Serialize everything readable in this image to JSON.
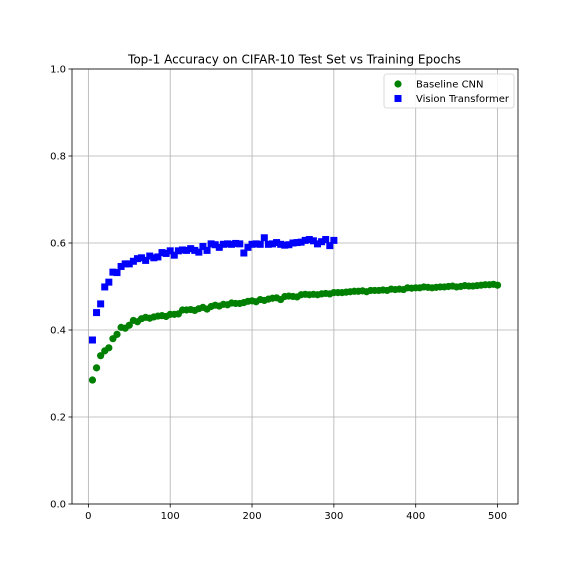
{
  "chart_data": {
    "type": "scatter",
    "title": "Top-1 Accuracy on CIFAR-10 Test Set vs Training Epochs",
    "xlabel": "",
    "ylabel": "",
    "xlim": [
      -20,
      525
    ],
    "ylim": [
      0.0,
      1.0
    ],
    "xticks": [
      0,
      100,
      200,
      300,
      400,
      500
    ],
    "xtick_labels": [
      "0",
      "100",
      "200",
      "300",
      "400",
      "500"
    ],
    "yticks": [
      0.0,
      0.2,
      0.4,
      0.6,
      0.8,
      1.0
    ],
    "ytick_labels": [
      "0.0",
      "0.2",
      "0.4",
      "0.6",
      "0.8",
      "1.0"
    ],
    "grid": true,
    "legend_position": "top-right",
    "series": [
      {
        "name": "Baseline CNN",
        "marker": "circle",
        "color": "#008000",
        "points": [
          [
            5,
            0.285
          ],
          [
            10,
            0.313
          ],
          [
            15,
            0.341
          ],
          [
            20,
            0.352
          ],
          [
            25,
            0.359
          ],
          [
            30,
            0.38
          ],
          [
            35,
            0.39
          ],
          [
            40,
            0.406
          ],
          [
            45,
            0.404
          ],
          [
            50,
            0.411
          ],
          [
            55,
            0.422
          ],
          [
            60,
            0.419
          ],
          [
            65,
            0.426
          ],
          [
            70,
            0.429
          ],
          [
            75,
            0.427
          ],
          [
            80,
            0.43
          ],
          [
            85,
            0.432
          ],
          [
            90,
            0.433
          ],
          [
            95,
            0.431
          ],
          [
            100,
            0.436
          ],
          [
            105,
            0.436
          ],
          [
            110,
            0.437
          ],
          [
            115,
            0.446
          ],
          [
            120,
            0.446
          ],
          [
            125,
            0.447
          ],
          [
            130,
            0.445
          ],
          [
            135,
            0.449
          ],
          [
            140,
            0.452
          ],
          [
            145,
            0.448
          ],
          [
            150,
            0.454
          ],
          [
            155,
            0.457
          ],
          [
            160,
            0.455
          ],
          [
            165,
            0.459
          ],
          [
            170,
            0.458
          ],
          [
            175,
            0.462
          ],
          [
            180,
            0.461
          ],
          [
            185,
            0.461
          ],
          [
            190,
            0.463
          ],
          [
            195,
            0.466
          ],
          [
            200,
            0.467
          ],
          [
            205,
            0.465
          ],
          [
            210,
            0.47
          ],
          [
            215,
            0.468
          ],
          [
            220,
            0.471
          ],
          [
            225,
            0.473
          ],
          [
            230,
            0.474
          ],
          [
            235,
            0.47
          ],
          [
            240,
            0.477
          ],
          [
            245,
            0.478
          ],
          [
            250,
            0.477
          ],
          [
            255,
            0.476
          ],
          [
            260,
            0.481
          ],
          [
            265,
            0.482
          ],
          [
            270,
            0.481
          ],
          [
            275,
            0.482
          ],
          [
            280,
            0.481
          ],
          [
            285,
            0.483
          ],
          [
            290,
            0.484
          ],
          [
            295,
            0.483
          ],
          [
            300,
            0.486
          ],
          [
            305,
            0.486
          ],
          [
            310,
            0.486
          ],
          [
            315,
            0.487
          ],
          [
            320,
            0.488
          ],
          [
            325,
            0.489
          ],
          [
            330,
            0.489
          ],
          [
            335,
            0.49
          ],
          [
            340,
            0.488
          ],
          [
            345,
            0.491
          ],
          [
            350,
            0.491
          ],
          [
            355,
            0.491
          ],
          [
            360,
            0.492
          ],
          [
            365,
            0.491
          ],
          [
            370,
            0.494
          ],
          [
            375,
            0.493
          ],
          [
            380,
            0.494
          ],
          [
            385,
            0.493
          ],
          [
            390,
            0.497
          ],
          [
            395,
            0.496
          ],
          [
            400,
            0.497
          ],
          [
            405,
            0.497
          ],
          [
            410,
            0.499
          ],
          [
            415,
            0.498
          ],
          [
            420,
            0.497
          ],
          [
            425,
            0.498
          ],
          [
            430,
            0.499
          ],
          [
            435,
            0.499
          ],
          [
            440,
            0.5
          ],
          [
            445,
            0.501
          ],
          [
            450,
            0.499
          ],
          [
            455,
            0.5
          ],
          [
            460,
            0.502
          ],
          [
            465,
            0.501
          ],
          [
            470,
            0.501
          ],
          [
            475,
            0.502
          ],
          [
            480,
            0.503
          ],
          [
            485,
            0.504
          ],
          [
            490,
            0.504
          ],
          [
            495,
            0.505
          ],
          [
            500,
            0.503
          ]
        ]
      },
      {
        "name": "Vision Transformer",
        "marker": "square",
        "color": "#0000ff",
        "points": [
          [
            5,
            0.377
          ],
          [
            10,
            0.44
          ],
          [
            15,
            0.46
          ],
          [
            20,
            0.499
          ],
          [
            25,
            0.51
          ],
          [
            30,
            0.533
          ],
          [
            35,
            0.532
          ],
          [
            40,
            0.546
          ],
          [
            45,
            0.552
          ],
          [
            50,
            0.552
          ],
          [
            55,
            0.558
          ],
          [
            60,
            0.564
          ],
          [
            65,
            0.566
          ],
          [
            70,
            0.56
          ],
          [
            75,
            0.57
          ],
          [
            80,
            0.566
          ],
          [
            85,
            0.568
          ],
          [
            90,
            0.578
          ],
          [
            95,
            0.576
          ],
          [
            100,
            0.582
          ],
          [
            105,
            0.572
          ],
          [
            110,
            0.582
          ],
          [
            115,
            0.584
          ],
          [
            120,
            0.583
          ],
          [
            125,
            0.587
          ],
          [
            130,
            0.583
          ],
          [
            135,
            0.579
          ],
          [
            140,
            0.592
          ],
          [
            145,
            0.583
          ],
          [
            150,
            0.598
          ],
          [
            155,
            0.596
          ],
          [
            160,
            0.59
          ],
          [
            165,
            0.597
          ],
          [
            170,
            0.598
          ],
          [
            175,
            0.597
          ],
          [
            180,
            0.599
          ],
          [
            185,
            0.598
          ],
          [
            190,
            0.577
          ],
          [
            195,
            0.59
          ],
          [
            200,
            0.597
          ],
          [
            205,
            0.598
          ],
          [
            210,
            0.597
          ],
          [
            215,
            0.612
          ],
          [
            220,
            0.597
          ],
          [
            225,
            0.598
          ],
          [
            230,
            0.601
          ],
          [
            235,
            0.597
          ],
          [
            240,
            0.595
          ],
          [
            245,
            0.596
          ],
          [
            250,
            0.6
          ],
          [
            255,
            0.601
          ],
          [
            260,
            0.602
          ],
          [
            265,
            0.606
          ],
          [
            270,
            0.608
          ],
          [
            275,
            0.605
          ],
          [
            280,
            0.598
          ],
          [
            285,
            0.603
          ],
          [
            290,
            0.608
          ],
          [
            295,
            0.594
          ],
          [
            300,
            0.606
          ]
        ]
      }
    ]
  }
}
